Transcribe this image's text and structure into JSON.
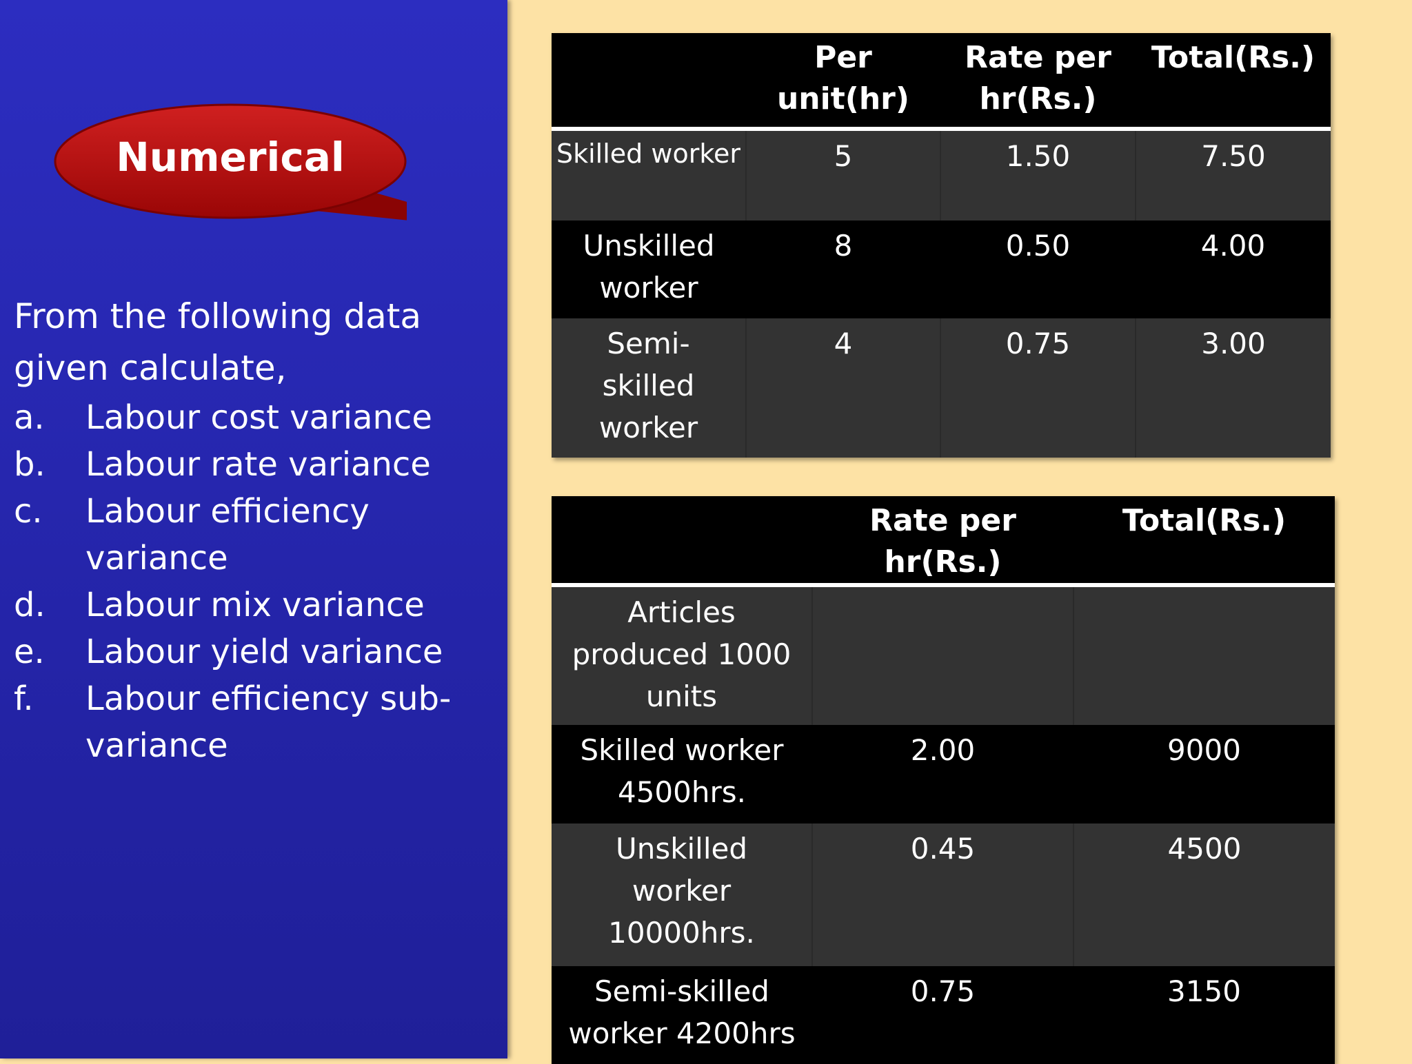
{
  "badge": {
    "label": "Numerical"
  },
  "prompt": "From the following  data given calculate,",
  "tasks": [
    {
      "marker": "a.",
      "text": "Labour cost variance"
    },
    {
      "marker": "b.",
      "text": "Labour rate variance"
    },
    {
      "marker": "c.",
      "text": "Labour efficiency variance"
    },
    {
      "marker": "d.",
      "text": "Labour mix variance"
    },
    {
      "marker": "e.",
      "text": "Labour yield variance"
    },
    {
      "marker": "f.",
      "text": "Labour efficiency sub-variance"
    }
  ],
  "standard_table": {
    "headers": [
      "",
      "Per unit(hr)",
      "Rate per hr(Rs.)",
      "Total(Rs.)"
    ],
    "rows": [
      [
        "Skilled worker",
        "5",
        "1.50",
        "7.50"
      ],
      [
        "Unskilled worker",
        "8",
        "0.50",
        "4.00"
      ],
      [
        "Semi-skilled worker",
        "4",
        "0.75",
        "3.00"
      ]
    ]
  },
  "actual_table": {
    "headers": [
      "",
      "Rate per hr(Rs.)",
      "Total(Rs.)"
    ],
    "rows": [
      [
        "Articles produced 1000 units",
        "",
        ""
      ],
      [
        "Skilled worker 4500hrs.",
        "2.00",
        "9000"
      ],
      [
        "Unskilled worker 10000hrs.",
        "0.45",
        "4500"
      ],
      [
        "Semi-skilled worker 4200hrs",
        "0.75",
        "3150"
      ]
    ]
  },
  "colors": {
    "panel": "#2c2dc0",
    "background": "#fde2a5",
    "badge": "#b50f0f",
    "table_dark": "#000000",
    "table_mid": "#333333"
  }
}
